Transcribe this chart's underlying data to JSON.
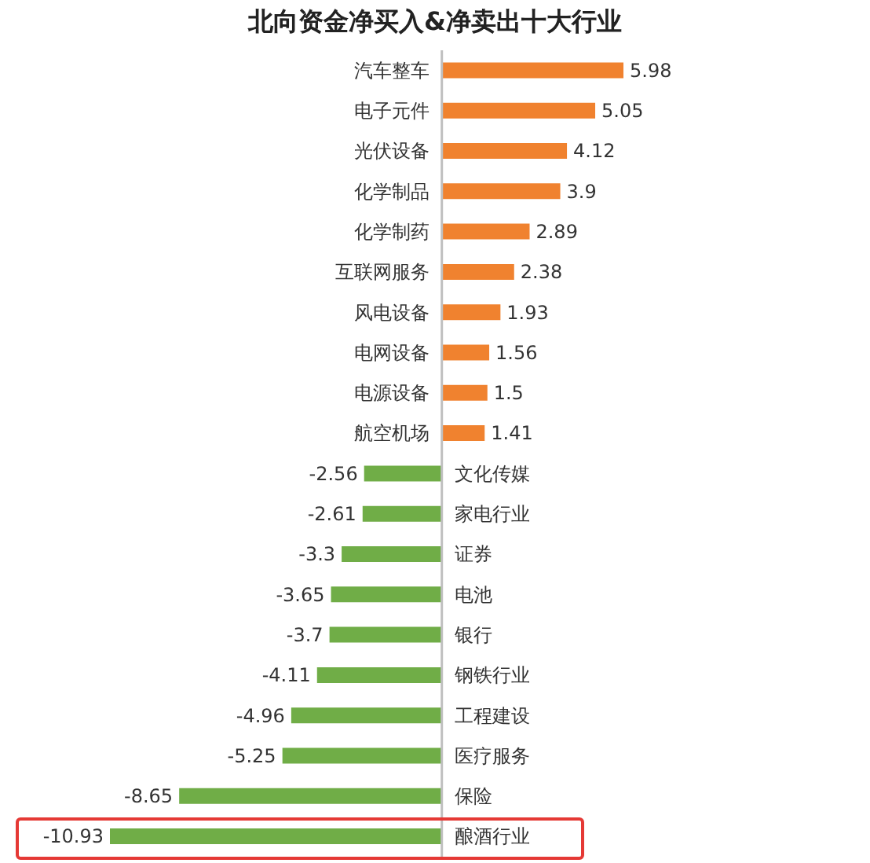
{
  "chart_data": {
    "type": "bar",
    "orientation": "horizontal",
    "title": "北向资金净买入&净卖出十大行业",
    "categories": [
      "汽车整车",
      "电子元件",
      "光伏设备",
      "化学制品",
      "化学制药",
      "互联网服务",
      "风电设备",
      "电网设备",
      "电源设备",
      "航空机场",
      "文化传媒",
      "家电行业",
      "证券",
      "电池",
      "银行",
      "钢铁行业",
      "工程建设",
      "医疗服务",
      "保险",
      "酿酒行业"
    ],
    "values": [
      5.98,
      5.05,
      4.12,
      3.9,
      2.89,
      2.38,
      1.93,
      1.56,
      1.5,
      1.41,
      -2.56,
      -2.61,
      -3.3,
      -3.65,
      -3.7,
      -4.11,
      -4.96,
      -5.25,
      -8.65,
      -10.93
    ],
    "colors": [
      "#f0822f",
      "#f0822f",
      "#f0822f",
      "#f0822f",
      "#f0822f",
      "#f0822f",
      "#f0822f",
      "#f0822f",
      "#f0822f",
      "#f0822f",
      "#70ad47",
      "#70ad47",
      "#70ad47",
      "#70ad47",
      "#70ad47",
      "#70ad47",
      "#70ad47",
      "#70ad47",
      "#70ad47",
      "#70ad47"
    ],
    "data_labels": true
  }
}
